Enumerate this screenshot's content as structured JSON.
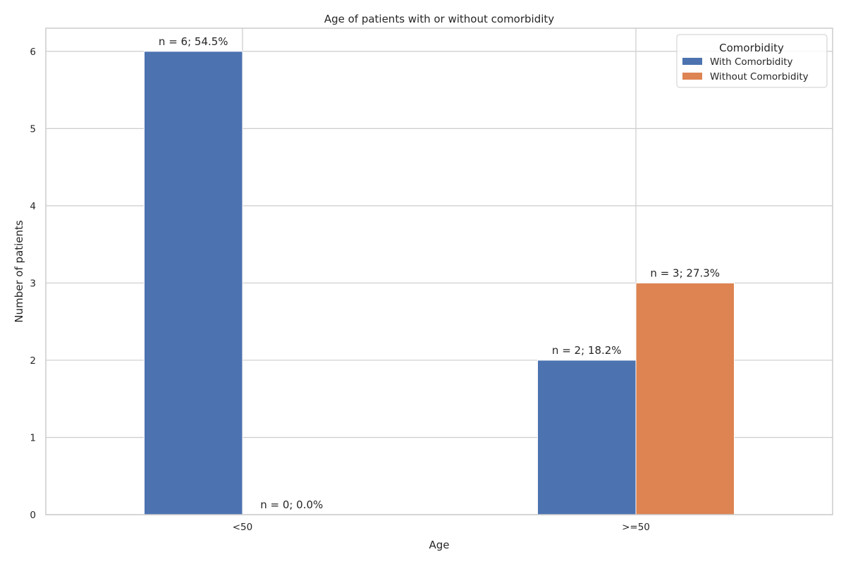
{
  "chart_data": {
    "type": "bar",
    "title": "Age of patients with or without comorbidity",
    "xlabel": "Age",
    "ylabel": "Number of patients",
    "categories": [
      "<50",
      ">=50"
    ],
    "series": [
      {
        "name": "With Comorbidity",
        "color": "#4c72b0",
        "values": [
          6,
          2
        ],
        "labels": [
          "n = 6; 54.5%",
          "n = 2; 18.2%"
        ]
      },
      {
        "name": "Without Comorbidity",
        "color": "#dd8452",
        "values": [
          0,
          3
        ],
        "labels": [
          "n = 0; 0.0%",
          "n = 3; 27.3%"
        ]
      }
    ],
    "ylim": [
      0,
      6.3
    ],
    "yticks": [
      0,
      1,
      2,
      3,
      4,
      5,
      6
    ],
    "grid": true,
    "legend": {
      "title": "Comorbidity",
      "placement": "top-right"
    }
  }
}
